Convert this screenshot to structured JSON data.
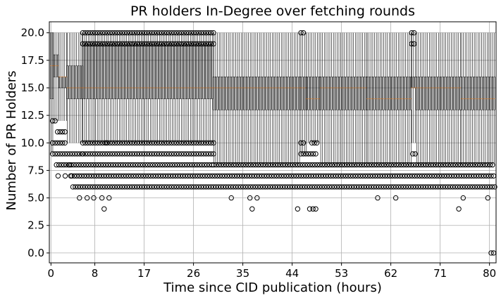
{
  "chart_data": {
    "type": "box",
    "title": "PR holders In-Degree over fetching rounds",
    "xlabel": "Time since CID publication (hours)",
    "ylabel": "Number of PR Holders",
    "xlim": [
      -0.3,
      81.2
    ],
    "ylim": [
      -0.9,
      21.0
    ],
    "xticks": [
      0,
      8,
      17,
      26,
      35,
      44,
      53,
      62,
      71,
      80
    ],
    "yticks": [
      0.0,
      2.5,
      5.0,
      7.5,
      10.0,
      12.5,
      15.0,
      17.5,
      20.0
    ],
    "ytick_labels": [
      "0.0",
      "2.5",
      "5.0",
      "7.5",
      "10.0",
      "12.5",
      "15.0",
      "17.5",
      "20.0"
    ],
    "grid": true,
    "legend": "none",
    "box_step_hours": 0.333,
    "segments": [
      {
        "from": 0.0,
        "to": 0.6,
        "whisker_low": 9,
        "q1": 14,
        "median": 17,
        "q3": 20,
        "whisker_high": 20
      },
      {
        "from": 0.6,
        "to": 1.5,
        "whisker_low": 12,
        "q1": 16,
        "median": 17,
        "q3": 18,
        "whisker_high": 20
      },
      {
        "from": 1.5,
        "to": 3.0,
        "whisker_low": 12,
        "q1": 15,
        "median": 16,
        "q3": 16,
        "whisker_high": 20
      },
      {
        "from": 3.0,
        "to": 5.8,
        "whisker_low": 10,
        "q1": 14,
        "median": 15,
        "q3": 17,
        "whisker_high": 20
      },
      {
        "from": 5.8,
        "to": 29.7,
        "whisker_low": 10,
        "q1": 14,
        "median": 15,
        "q3": 19,
        "whisker_high": 20
      },
      {
        "from": 29.7,
        "to": 45.6,
        "whisker_low": 8,
        "q1": 13,
        "median": 15,
        "q3": 16,
        "whisker_high": 20
      },
      {
        "from": 45.6,
        "to": 46.6,
        "whisker_low": 9,
        "q1": 13,
        "median": 15,
        "q3": 16,
        "whisker_high": 20
      },
      {
        "from": 46.6,
        "to": 49.2,
        "whisker_low": 10,
        "q1": 13,
        "median": 14,
        "q3": 16,
        "whisker_high": 20
      },
      {
        "from": 49.2,
        "to": 57.7,
        "whisker_low": 8,
        "q1": 13,
        "median": 15,
        "q3": 16,
        "whisker_high": 20
      },
      {
        "from": 57.7,
        "to": 65.8,
        "whisker_low": 8,
        "q1": 13,
        "median": 14,
        "q3": 16,
        "whisker_high": 20
      },
      {
        "from": 65.8,
        "to": 66.7,
        "whisker_low": 10,
        "q1": 15,
        "median": 15,
        "q3": 16,
        "whisker_high": 20
      },
      {
        "from": 66.7,
        "to": 74.9,
        "whisker_low": 8,
        "q1": 13,
        "median": 15,
        "q3": 16,
        "whisker_high": 20
      },
      {
        "from": 74.9,
        "to": 81.0,
        "whisker_low": 8,
        "q1": 13,
        "median": 14,
        "q3": 16,
        "whisker_high": 20
      }
    ],
    "outlier_rows": [
      {
        "y": 20,
        "from": 5.8,
        "to": 29.7
      },
      {
        "y": 19,
        "from": 5.8,
        "to": 29.7
      },
      {
        "y": 20,
        "from": 45.6,
        "to": 46.2
      },
      {
        "y": 20,
        "from": 65.8,
        "to": 66.6
      },
      {
        "y": 19,
        "from": 65.8,
        "to": 66.6
      },
      {
        "y": 12,
        "from": 0.3,
        "to": 1.0
      },
      {
        "y": 11,
        "from": 1.2,
        "to": 3.0
      },
      {
        "y": 10,
        "from": 0.3,
        "to": 3.0
      },
      {
        "y": 10,
        "from": 5.8,
        "to": 29.7
      },
      {
        "y": 10,
        "from": 45.6,
        "to": 46.2
      },
      {
        "y": 10,
        "from": 47.6,
        "to": 48.6
      },
      {
        "y": 9,
        "from": 0.3,
        "to": 5.8
      },
      {
        "y": 9,
        "from": 5.8,
        "to": 29.7
      },
      {
        "y": 9,
        "from": 45.6,
        "to": 48.6
      },
      {
        "y": 9,
        "from": 66.0,
        "to": 66.6
      },
      {
        "y": 8,
        "from": 1.0,
        "to": 29.7
      },
      {
        "y": 8,
        "from": 29.7,
        "to": 81.0
      },
      {
        "y": 7,
        "from": 3.8,
        "to": 81.0
      },
      {
        "y": 6,
        "from": 4.0,
        "to": 81.0
      },
      {
        "y": 0,
        "from": 80.3,
        "to": 81.0
      }
    ],
    "scattered_outliers": [
      {
        "x": 1.3,
        "y": 7
      },
      {
        "x": 2.6,
        "y": 7
      },
      {
        "x": 3.6,
        "y": 7
      },
      {
        "x": 5.2,
        "y": 5
      },
      {
        "x": 6.6,
        "y": 5
      },
      {
        "x": 7.8,
        "y": 5
      },
      {
        "x": 9.3,
        "y": 5
      },
      {
        "x": 10.6,
        "y": 5
      },
      {
        "x": 9.7,
        "y": 4
      },
      {
        "x": 32.9,
        "y": 5
      },
      {
        "x": 36.3,
        "y": 5
      },
      {
        "x": 36.7,
        "y": 4
      },
      {
        "x": 37.6,
        "y": 5
      },
      {
        "x": 45.0,
        "y": 4
      },
      {
        "x": 47.2,
        "y": 4
      },
      {
        "x": 47.8,
        "y": 4
      },
      {
        "x": 48.3,
        "y": 4
      },
      {
        "x": 59.6,
        "y": 5
      },
      {
        "x": 62.9,
        "y": 5
      },
      {
        "x": 74.4,
        "y": 4
      },
      {
        "x": 75.2,
        "y": 5
      },
      {
        "x": 79.7,
        "y": 5
      },
      {
        "x": 3.4,
        "y": 8
      },
      {
        "x": 10.1,
        "y": 10
      }
    ],
    "colors": {
      "box": "#000000",
      "median": "#ff7f0e",
      "grid": "#b0b0b0",
      "outlier": "#000000"
    }
  }
}
